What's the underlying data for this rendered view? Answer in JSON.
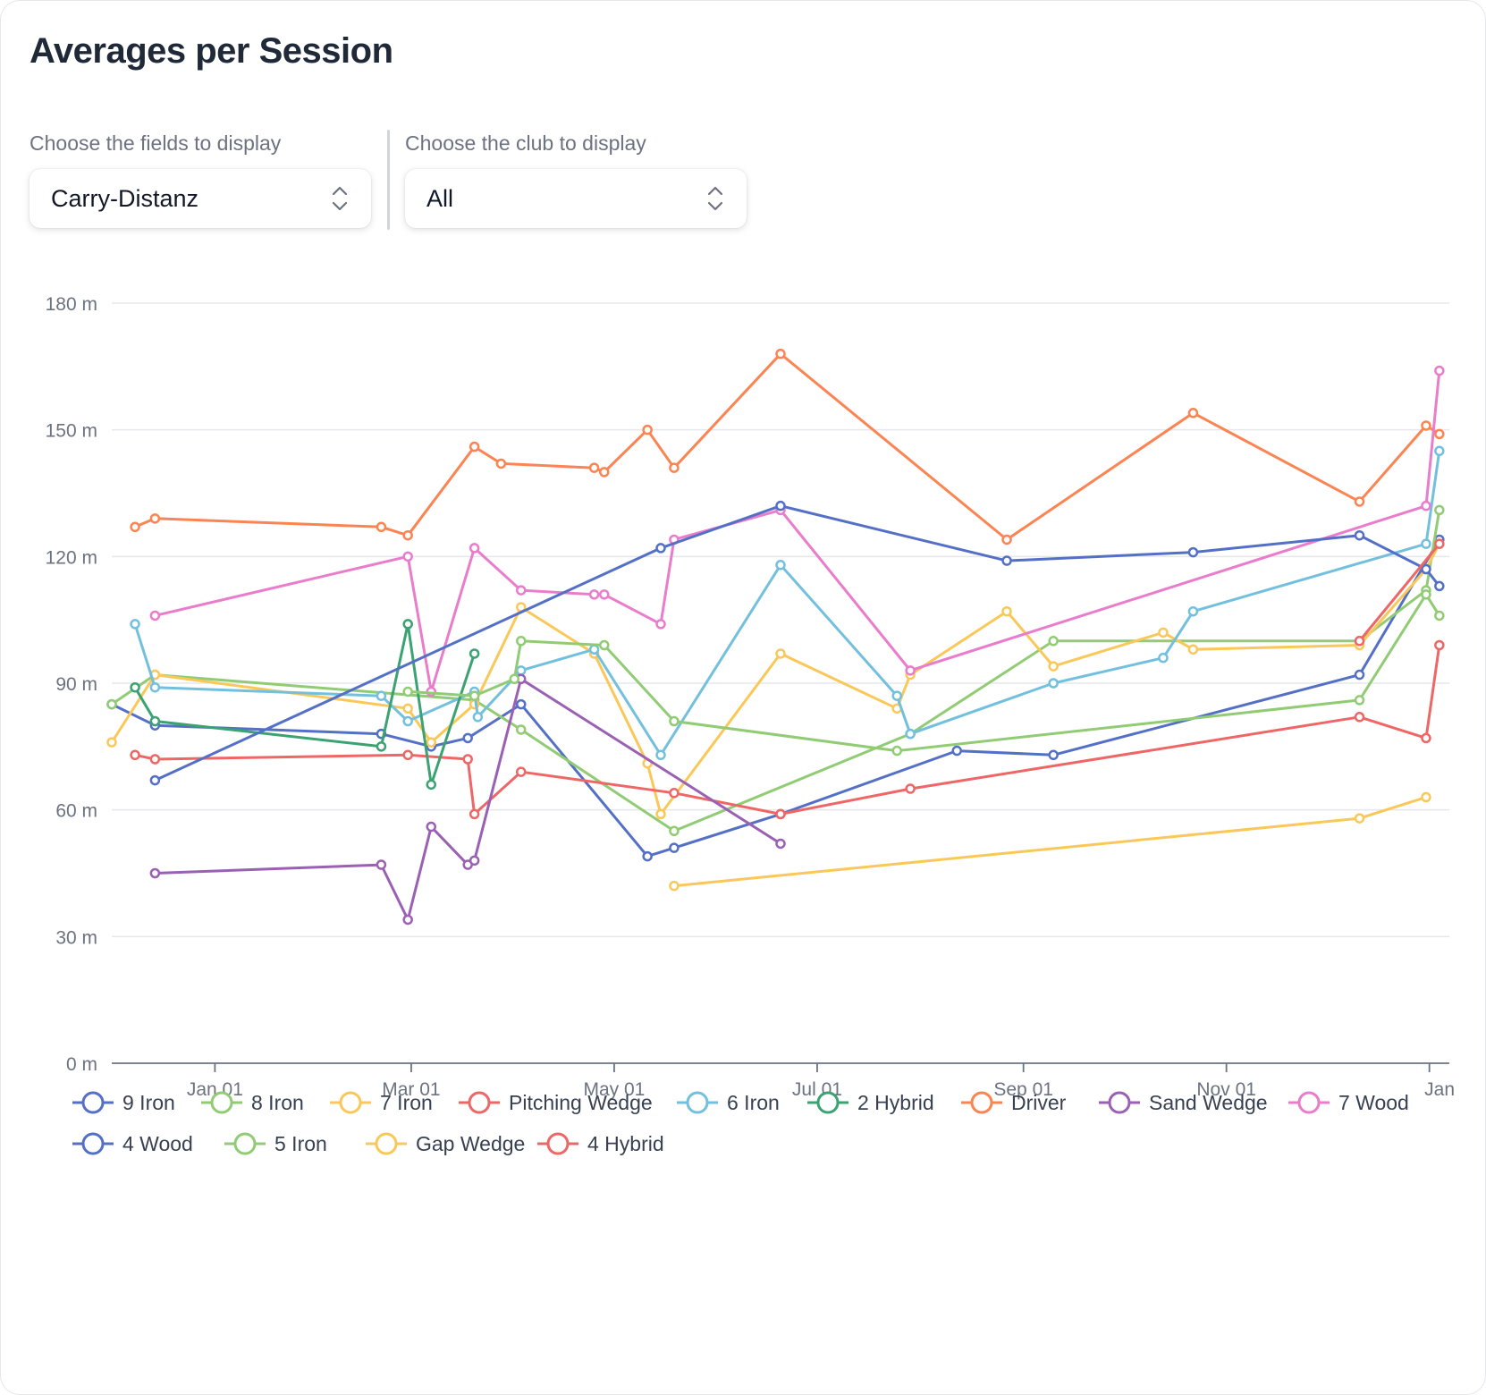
{
  "header": {
    "title": "Averages per Session"
  },
  "controls": {
    "fields_label": "Choose the fields to display",
    "fields_value": "Carry-Distanz",
    "club_label": "Choose the club to display",
    "club_value": "All"
  },
  "chart_data": {
    "type": "line",
    "title": "Averages per Session",
    "xlabel": "",
    "ylabel": "",
    "x_type": "date",
    "xlim": [
      "2022-12-01",
      "2024-01-07"
    ],
    "ylim": [
      0,
      180
    ],
    "y_unit": " m",
    "yticks": [
      0,
      30,
      60,
      90,
      120,
      150,
      180
    ],
    "ytick_labels": [
      "0 m",
      "30 m",
      "60 m",
      "90 m",
      "120 m",
      "150 m",
      "180 m"
    ],
    "xticks": [
      "2023-01-01",
      "2023-03-01",
      "2023-05-01",
      "2023-07-01",
      "2023-09-01",
      "2023-11-01",
      "2024-01-01"
    ],
    "xtick_labels": [
      "Jan 01",
      "Mar 01",
      "May 01",
      "Jul 01",
      "Sep 01",
      "Nov 01",
      "Jan"
    ],
    "grid": "horizontal",
    "legend": "bottom",
    "series": [
      {
        "name": "9 Iron",
        "color": "#5470c6",
        "points": [
          [
            "2022-12-01",
            85
          ],
          [
            "2022-12-14",
            80
          ],
          [
            "2023-02-20",
            78
          ],
          [
            "2023-03-07",
            75
          ],
          [
            "2023-03-18",
            77
          ],
          [
            "2023-04-03",
            85
          ],
          [
            "2023-05-11",
            49
          ],
          [
            "2023-05-19",
            51
          ],
          [
            "2023-06-20",
            59
          ],
          [
            "2023-08-12",
            74
          ],
          [
            "2023-09-10",
            73
          ],
          [
            "2023-12-11",
            92
          ],
          [
            "2024-01-04",
            124
          ]
        ]
      },
      {
        "name": "8 Iron",
        "color": "#91cc75",
        "points": [
          [
            "2022-12-01",
            85
          ],
          [
            "2022-12-14",
            92
          ],
          [
            "2023-03-20",
            86
          ],
          [
            "2023-04-03",
            79
          ],
          [
            "2023-05-19",
            55
          ],
          [
            "2023-07-29",
            78
          ],
          [
            "2023-09-10",
            100
          ],
          [
            "2023-12-11",
            100
          ],
          [
            "2023-12-31",
            112
          ],
          [
            "2024-01-04",
            131
          ]
        ]
      },
      {
        "name": "7 Iron",
        "color": "#fac858",
        "points": [
          [
            "2022-12-01",
            76
          ],
          [
            "2022-12-14",
            92
          ],
          [
            "2023-02-28",
            84
          ],
          [
            "2023-03-07",
            76
          ],
          [
            "2023-03-20",
            85
          ],
          [
            "2023-04-03",
            108
          ],
          [
            "2023-04-25",
            97
          ],
          [
            "2023-05-11",
            71
          ],
          [
            "2023-05-15",
            59
          ],
          [
            "2023-06-20",
            97
          ],
          [
            "2023-07-25",
            84
          ],
          [
            "2023-07-29",
            92
          ],
          [
            "2023-08-27",
            107
          ],
          [
            "2023-09-10",
            94
          ],
          [
            "2023-10-13",
            102
          ],
          [
            "2023-10-22",
            98
          ],
          [
            "2023-12-11",
            99
          ],
          [
            "2023-12-31",
            117
          ],
          [
            "2024-01-04",
            123
          ]
        ]
      },
      {
        "name": "Pitching Wedge",
        "color": "#ee6666",
        "points": [
          [
            "2022-12-08",
            73
          ],
          [
            "2022-12-14",
            72
          ],
          [
            "2023-02-28",
            73
          ],
          [
            "2023-03-18",
            72
          ],
          [
            "2023-03-20",
            59
          ],
          [
            "2023-04-03",
            69
          ],
          [
            "2023-05-19",
            64
          ],
          [
            "2023-06-20",
            59
          ],
          [
            "2023-07-29",
            65
          ],
          [
            "2023-12-11",
            82
          ],
          [
            "2023-12-31",
            77
          ],
          [
            "2024-01-04",
            99
          ]
        ]
      },
      {
        "name": "6 Iron",
        "color": "#73c0de",
        "points": [
          [
            "2022-12-08",
            104
          ],
          [
            "2022-12-14",
            89
          ],
          [
            "2023-02-20",
            87
          ],
          [
            "2023-02-28",
            81
          ],
          [
            "2023-03-20",
            88
          ],
          [
            "2023-03-21",
            82
          ],
          [
            "2023-04-03",
            93
          ],
          [
            "2023-04-25",
            98
          ],
          [
            "2023-05-15",
            73
          ],
          [
            "2023-06-20",
            118
          ],
          [
            "2023-07-25",
            87
          ],
          [
            "2023-07-29",
            78
          ],
          [
            "2023-09-10",
            90
          ],
          [
            "2023-10-13",
            96
          ],
          [
            "2023-10-22",
            107
          ],
          [
            "2023-12-31",
            123
          ],
          [
            "2024-01-04",
            145
          ]
        ]
      },
      {
        "name": "2 Hybrid",
        "color": "#3ba272",
        "points": [
          [
            "2022-12-08",
            89
          ],
          [
            "2022-12-14",
            81
          ],
          [
            "2023-02-20",
            75
          ],
          [
            "2023-02-28",
            104
          ],
          [
            "2023-03-07",
            66
          ],
          [
            "2023-03-20",
            97
          ]
        ]
      },
      {
        "name": "Driver",
        "color": "#fc8452",
        "points": [
          [
            "2022-12-08",
            127
          ],
          [
            "2022-12-14",
            129
          ],
          [
            "2023-02-20",
            127
          ],
          [
            "2023-02-28",
            125
          ],
          [
            "2023-03-20",
            146
          ],
          [
            "2023-03-28",
            142
          ],
          [
            "2023-04-25",
            141
          ],
          [
            "2023-04-28",
            140
          ],
          [
            "2023-05-11",
            150
          ],
          [
            "2023-05-19",
            141
          ],
          [
            "2023-06-20",
            168
          ],
          [
            "2023-08-27",
            124
          ],
          [
            "2023-10-22",
            154
          ],
          [
            "2023-12-11",
            133
          ],
          [
            "2023-12-31",
            151
          ],
          [
            "2024-01-04",
            149
          ]
        ]
      },
      {
        "name": "Sand Wedge",
        "color": "#9a60b4",
        "points": [
          [
            "2022-12-14",
            45
          ],
          [
            "2023-02-20",
            47
          ],
          [
            "2023-02-28",
            34
          ],
          [
            "2023-03-07",
            56
          ],
          [
            "2023-03-18",
            47
          ],
          [
            "2023-03-20",
            48
          ],
          [
            "2023-04-03",
            91
          ],
          [
            "2023-06-20",
            52
          ]
        ]
      },
      {
        "name": "7 Wood",
        "color": "#ea7ccc",
        "points": [
          [
            "2022-12-14",
            106
          ],
          [
            "2023-02-28",
            120
          ],
          [
            "2023-03-07",
            88
          ],
          [
            "2023-03-20",
            122
          ],
          [
            "2023-04-03",
            112
          ],
          [
            "2023-04-25",
            111
          ],
          [
            "2023-04-28",
            111
          ],
          [
            "2023-05-15",
            104
          ],
          [
            "2023-05-19",
            124
          ],
          [
            "2023-06-20",
            131
          ],
          [
            "2023-07-29",
            93
          ],
          [
            "2023-12-31",
            132
          ],
          [
            "2024-01-04",
            164
          ]
        ]
      },
      {
        "name": "4 Wood",
        "color": "#5470c6",
        "points": [
          [
            "2022-12-14",
            67
          ],
          [
            "2023-05-15",
            122
          ],
          [
            "2023-06-20",
            132
          ],
          [
            "2023-08-27",
            119
          ],
          [
            "2023-10-22",
            121
          ],
          [
            "2023-12-11",
            125
          ],
          [
            "2023-12-31",
            117
          ],
          [
            "2024-01-04",
            113
          ]
        ]
      },
      {
        "name": "5 Iron",
        "color": "#91cc75",
        "points": [
          [
            "2023-02-28",
            88
          ],
          [
            "2023-03-20",
            87
          ],
          [
            "2023-04-01",
            91
          ],
          [
            "2023-04-03",
            100
          ],
          [
            "2023-04-28",
            99
          ],
          [
            "2023-05-19",
            81
          ],
          [
            "2023-07-25",
            74
          ],
          [
            "2023-12-11",
            86
          ],
          [
            "2023-12-31",
            111
          ],
          [
            "2024-01-04",
            106
          ]
        ]
      },
      {
        "name": "Gap Wedge",
        "color": "#fac858",
        "points": [
          [
            "2023-05-19",
            42
          ],
          [
            "2023-12-11",
            58
          ],
          [
            "2023-12-31",
            63
          ]
        ]
      },
      {
        "name": "4 Hybrid",
        "color": "#ee6666",
        "points": [
          [
            "2023-12-11",
            100
          ],
          [
            "2024-01-04",
            123
          ]
        ]
      }
    ]
  }
}
